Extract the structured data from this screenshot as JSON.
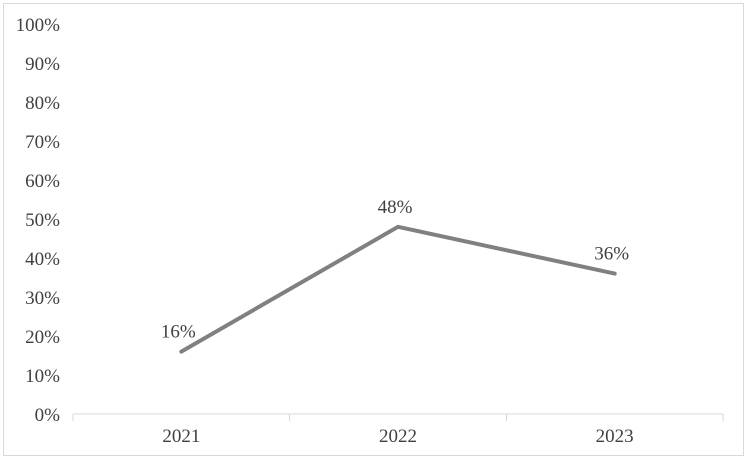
{
  "chart_data": {
    "type": "line",
    "title": "",
    "xlabel": "",
    "ylabel": "",
    "categories": [
      "2021",
      "2022",
      "2023"
    ],
    "values": [
      16,
      48,
      36
    ],
    "data_labels": [
      "16%",
      "48%",
      "36%"
    ],
    "y_ticks": [
      0,
      10,
      20,
      30,
      40,
      50,
      60,
      70,
      80,
      90,
      100
    ],
    "y_tick_labels": [
      "0%",
      "10%",
      "20%",
      "30%",
      "40%",
      "50%",
      "60%",
      "70%",
      "80%",
      "90%",
      "100%"
    ],
    "ylim": [
      0,
      100
    ],
    "grid": false,
    "legend": null,
    "tick_marks": "outside-between-categories",
    "colors": {
      "line": "#808080",
      "axis": "#d9d9d9",
      "tick": "#d9d9d9",
      "border": "#d9d9d9",
      "text": "#404040",
      "background": "#ffffff"
    }
  }
}
